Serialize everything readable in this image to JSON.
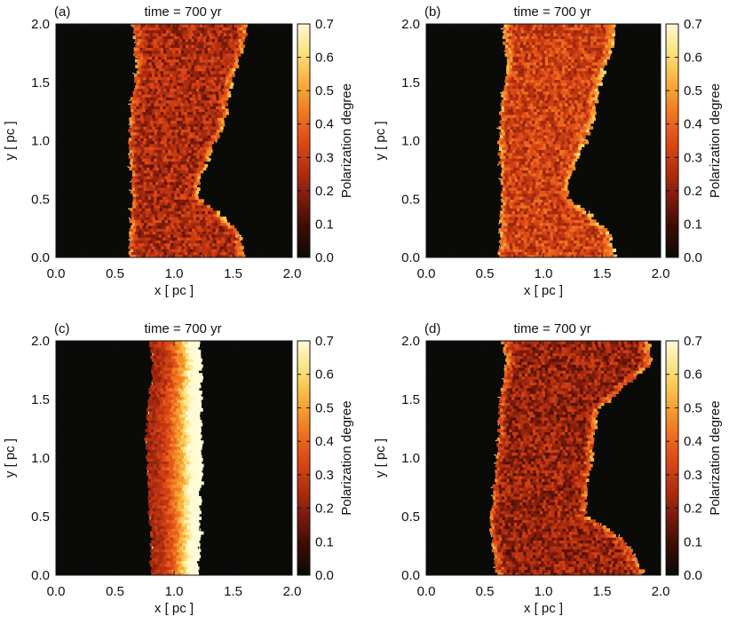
{
  "colors": {
    "background": "#0a0a08",
    "vector": "#ffffff",
    "colormap": [
      "#0a0a08",
      "#3a0c06",
      "#7a1a0c",
      "#b5300f",
      "#e04a18",
      "#f07a22",
      "#f8b03a",
      "#fbe07a",
      "#fffbd6"
    ]
  },
  "chart_data": [
    {
      "type": "heatmap",
      "panel": "(a)",
      "title": "time = 700 yr",
      "xlabel": "x [ pc ]",
      "ylabel": "y [ pc ]",
      "xlim": [
        0.0,
        2.0
      ],
      "ylim": [
        0.0,
        2.0
      ],
      "xticks": [
        "0.0",
        "0.5",
        "1.0",
        "1.5",
        "2.0"
      ],
      "yticks": [
        "0.0",
        "0.5",
        "1.0",
        "1.5",
        "2.0"
      ],
      "colorbar": {
        "label": "Polarization degree",
        "range": [
          0.0,
          0.7
        ],
        "ticks": [
          "0.0",
          "0.1",
          "0.2",
          "0.3",
          "0.4",
          "0.5",
          "0.6",
          "0.7"
        ]
      },
      "filament_profile": {
        "y": [
          0.0,
          0.2,
          0.4,
          0.5,
          0.6,
          0.8,
          1.0,
          1.2,
          1.4,
          1.6,
          1.8,
          2.0
        ],
        "left_edge": [
          0.62,
          0.63,
          0.64,
          0.65,
          0.64,
          0.63,
          0.62,
          0.63,
          0.65,
          0.68,
          0.67,
          0.65
        ],
        "right_edge": [
          1.6,
          1.55,
          1.35,
          1.2,
          1.18,
          1.25,
          1.35,
          1.42,
          1.45,
          1.5,
          1.58,
          1.6
        ]
      },
      "mean_polarization": 0.25,
      "edge_polarization": 0.45,
      "vector_orientation": "mixed"
    },
    {
      "type": "heatmap",
      "panel": "(b)",
      "title": "time = 700 yr",
      "xlabel": "x [ pc ]",
      "ylabel": "y [ pc ]",
      "xlim": [
        0.0,
        2.0
      ],
      "ylim": [
        0.0,
        2.0
      ],
      "xticks": [
        "0.0",
        "0.5",
        "1.0",
        "1.5",
        "2.0"
      ],
      "yticks": [
        "0.0",
        "0.5",
        "1.0",
        "1.5",
        "2.0"
      ],
      "colorbar": {
        "label": "Polarization degree",
        "range": [
          0.0,
          0.7
        ],
        "ticks": [
          "0.0",
          "0.1",
          "0.2",
          "0.3",
          "0.4",
          "0.5",
          "0.6",
          "0.7"
        ]
      },
      "filament_profile": {
        "y": [
          0.0,
          0.2,
          0.4,
          0.5,
          0.6,
          0.8,
          1.0,
          1.2,
          1.4,
          1.6,
          1.8,
          2.0
        ],
        "left_edge": [
          0.62,
          0.63,
          0.64,
          0.65,
          0.64,
          0.63,
          0.62,
          0.63,
          0.65,
          0.68,
          0.67,
          0.65
        ],
        "right_edge": [
          1.6,
          1.55,
          1.35,
          1.2,
          1.18,
          1.25,
          1.35,
          1.42,
          1.45,
          1.5,
          1.58,
          1.6
        ]
      },
      "mean_polarization": 0.32,
      "edge_polarization": 0.5,
      "vector_orientation": "mixed"
    },
    {
      "type": "heatmap",
      "panel": "(c)",
      "title": "time = 700 yr",
      "xlabel": "x [ pc ]",
      "ylabel": "y [ pc ]",
      "xlim": [
        0.0,
        2.0
      ],
      "ylim": [
        0.0,
        2.0
      ],
      "xticks": [
        "0.0",
        "0.5",
        "1.0",
        "1.5",
        "2.0"
      ],
      "yticks": [
        "0.0",
        "0.5",
        "1.0",
        "1.5",
        "2.0"
      ],
      "colorbar": {
        "label": "Polarization degree",
        "range": [
          0.0,
          0.7
        ],
        "ticks": [
          "0.0",
          "0.1",
          "0.2",
          "0.3",
          "0.4",
          "0.5",
          "0.6",
          "0.7"
        ]
      },
      "filament_profile": {
        "y": [
          0.0,
          0.2,
          0.4,
          0.6,
          0.8,
          1.0,
          1.2,
          1.4,
          1.6,
          1.8,
          2.0
        ],
        "left_edge": [
          0.8,
          0.81,
          0.8,
          0.79,
          0.78,
          0.77,
          0.76,
          0.78,
          0.8,
          0.82,
          0.8
        ],
        "right_edge": [
          1.2,
          1.2,
          1.21,
          1.21,
          1.22,
          1.22,
          1.22,
          1.21,
          1.21,
          1.22,
          1.2
        ]
      },
      "mean_polarization": 0.4,
      "edge_polarization": 0.68,
      "vector_orientation": "vertical"
    },
    {
      "type": "heatmap",
      "panel": "(d)",
      "title": "time = 700 yr",
      "xlabel": "x [ pc ]",
      "ylabel": "y [ pc ]",
      "xlim": [
        0.0,
        2.0
      ],
      "ylim": [
        0.0,
        2.0
      ],
      "xticks": [
        "0.0",
        "0.5",
        "1.0",
        "1.5",
        "2.0"
      ],
      "yticks": [
        "0.0",
        "0.5",
        "1.0",
        "1.5",
        "2.0"
      ],
      "colorbar": {
        "label": "Polarization degree",
        "range": [
          0.0,
          0.7
        ],
        "ticks": [
          "0.0",
          "0.1",
          "0.2",
          "0.3",
          "0.4",
          "0.5",
          "0.6",
          "0.7"
        ]
      },
      "filament_profile": {
        "y": [
          0.0,
          0.2,
          0.4,
          0.5,
          0.6,
          0.8,
          1.0,
          1.2,
          1.4,
          1.6,
          1.8,
          2.0
        ],
        "left_edge": [
          0.6,
          0.57,
          0.55,
          0.55,
          0.56,
          0.58,
          0.6,
          0.62,
          0.62,
          0.65,
          0.68,
          0.65
        ],
        "right_edge": [
          1.85,
          1.75,
          1.55,
          1.35,
          1.35,
          1.37,
          1.4,
          1.42,
          1.45,
          1.65,
          1.9,
          1.9
        ]
      },
      "mean_polarization": 0.22,
      "edge_polarization": 0.42,
      "vector_orientation": "mixed"
    }
  ]
}
